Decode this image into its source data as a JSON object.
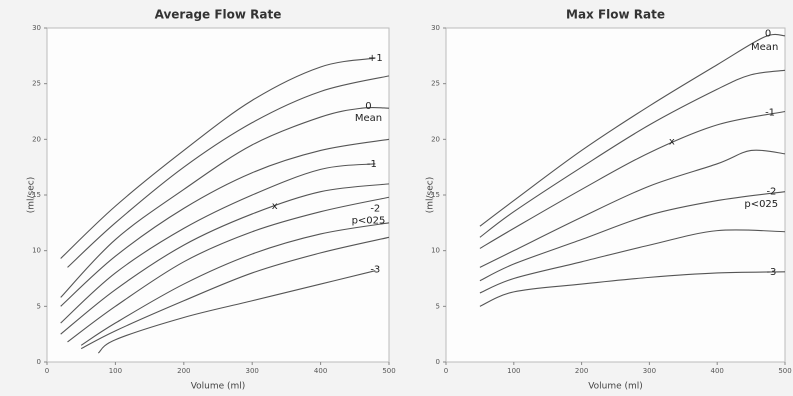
{
  "chart_data": [
    {
      "type": "line",
      "title": "Average Flow Rate",
      "xlabel": "Volume (ml)",
      "ylabel": "(ml/sec)",
      "xlim": [
        0,
        500
      ],
      "ylim": [
        0,
        30
      ],
      "xticks": [
        0,
        100,
        200,
        300,
        400,
        500
      ],
      "yticks": [
        0,
        5,
        10,
        15,
        20,
        25,
        30
      ],
      "color": "#555555",
      "series": [
        {
          "x": [
            20,
            100,
            200,
            300,
            400,
            480
          ],
          "values": [
            9.3,
            14,
            19,
            23.5,
            26.5,
            27.3
          ]
        },
        {
          "x": [
            30,
            100,
            200,
            300,
            400,
            500
          ],
          "values": [
            8.5,
            12.5,
            17.5,
            21.5,
            24.3,
            25.7
          ]
        },
        {
          "x": [
            20,
            100,
            200,
            300,
            400,
            460,
            500
          ],
          "values": [
            5.8,
            11,
            15.5,
            19.5,
            22,
            22.8,
            22.8
          ]
        },
        {
          "x": [
            20,
            100,
            200,
            300,
            400,
            500
          ],
          "values": [
            5,
            9.5,
            13.8,
            17,
            19,
            20
          ]
        },
        {
          "x": [
            20,
            100,
            200,
            300,
            400,
            480
          ],
          "values": [
            3.5,
            8,
            12,
            15,
            17.3,
            17.8
          ]
        },
        {
          "x": [
            20,
            100,
            200,
            300,
            400,
            500
          ],
          "values": [
            2.5,
            6.5,
            10.5,
            13.3,
            15.3,
            16
          ]
        },
        {
          "x": [
            30,
            100,
            200,
            300,
            400,
            500
          ],
          "values": [
            1.8,
            5,
            9,
            11.7,
            13.5,
            14.8
          ]
        },
        {
          "x": [
            50,
            100,
            200,
            300,
            400,
            500
          ],
          "values": [
            1.5,
            3.5,
            7,
            9.7,
            11.5,
            12.5
          ]
        },
        {
          "x": [
            50,
            100,
            200,
            300,
            400,
            500
          ],
          "values": [
            1.2,
            2.8,
            5.5,
            8,
            9.8,
            11.2
          ]
        },
        {
          "x": [
            75,
            100,
            200,
            300,
            400,
            480
          ],
          "values": [
            0.8,
            2,
            4,
            5.5,
            7,
            8.2
          ]
        }
      ],
      "annotations": [
        {
          "text": "+1",
          "x": 480,
          "y": 27.3
        },
        {
          "text": "0",
          "x": 470,
          "y": 23
        },
        {
          "text": "Mean",
          "x": 470,
          "y": 21.9
        },
        {
          "text": "-1",
          "x": 475,
          "y": 17.8
        },
        {
          "text": "x",
          "x": 333,
          "y": 14
        },
        {
          "text": "-2",
          "x": 480,
          "y": 13.8
        },
        {
          "text": "p<025",
          "x": 470,
          "y": 12.7
        },
        {
          "text": "-3",
          "x": 480,
          "y": 8.3
        }
      ]
    },
    {
      "type": "line",
      "title": "Max Flow Rate",
      "xlabel": "Volume (ml)",
      "ylabel": "(ml/sec)",
      "xlim": [
        0,
        500
      ],
      "ylim": [
        0,
        30
      ],
      "xticks": [
        0,
        100,
        200,
        300,
        400,
        500
      ],
      "yticks": [
        0,
        5,
        10,
        15,
        20,
        25,
        30
      ],
      "color": "#555555",
      "series": [
        {
          "x": [
            50,
            100,
            200,
            300,
            400,
            470,
            500
          ],
          "values": [
            12.2,
            14.5,
            19,
            23,
            26.7,
            29.2,
            29.3
          ]
        },
        {
          "x": [
            50,
            100,
            200,
            300,
            400,
            450,
            500
          ],
          "values": [
            11.2,
            13.5,
            17.5,
            21.3,
            24.5,
            25.8,
            26.2
          ]
        },
        {
          "x": [
            50,
            100,
            200,
            300,
            400,
            500
          ],
          "values": [
            10.2,
            12,
            15.5,
            18.8,
            21.3,
            22.5
          ]
        },
        {
          "x": [
            50,
            100,
            200,
            300,
            400,
            450,
            500
          ],
          "values": [
            8.5,
            10,
            13,
            15.8,
            17.8,
            19,
            18.7
          ]
        },
        {
          "x": [
            50,
            100,
            200,
            300,
            400,
            500
          ],
          "values": [
            7.3,
            8.8,
            11,
            13.2,
            14.5,
            15.3
          ]
        },
        {
          "x": [
            50,
            100,
            200,
            300,
            400,
            500
          ],
          "values": [
            6.2,
            7.5,
            9,
            10.5,
            11.8,
            11.7
          ]
        },
        {
          "x": [
            50,
            100,
            200,
            300,
            400,
            500
          ],
          "values": [
            5,
            6.3,
            7,
            7.6,
            8,
            8.1
          ]
        }
      ],
      "annotations": [
        {
          "text": "0",
          "x": 475,
          "y": 29.5
        },
        {
          "text": "Mean",
          "x": 470,
          "y": 28.3
        },
        {
          "text": "-1",
          "x": 478,
          "y": 22.4
        },
        {
          "text": "x",
          "x": 333,
          "y": 19.8
        },
        {
          "text": "-2",
          "x": 480,
          "y": 15.3
        },
        {
          "text": "p<025",
          "x": 465,
          "y": 14.2
        },
        {
          "text": "-3",
          "x": 480,
          "y": 8.1
        }
      ]
    }
  ]
}
